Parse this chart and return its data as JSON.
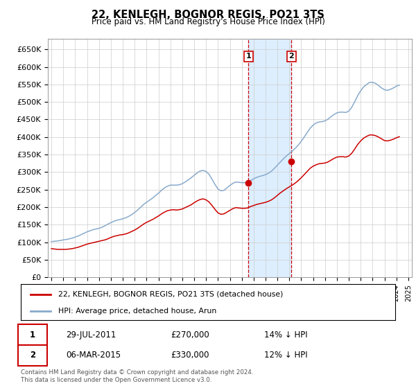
{
  "title": "22, KENLEGH, BOGNOR REGIS, PO21 3TS",
  "subtitle": "Price paid vs. HM Land Registry's House Price Index (HPI)",
  "legend_line1": "22, KENLEGH, BOGNOR REGIS, PO21 3TS (detached house)",
  "legend_line2": "HPI: Average price, detached house, Arun",
  "annotation1_date": "29-JUL-2011",
  "annotation1_price": "£270,000",
  "annotation1_hpi": "14% ↓ HPI",
  "annotation2_date": "06-MAR-2015",
  "annotation2_price": "£330,000",
  "annotation2_hpi": "12% ↓ HPI",
  "footer": "Contains HM Land Registry data © Crown copyright and database right 2024.\nThis data is licensed under the Open Government Licence v3.0.",
  "red_color": "#cc0000",
  "blue_color": "#88aacc",
  "highlight_color": "#ddeeff",
  "annotation_color": "#cc0000",
  "ylim": [
    0,
    680000
  ],
  "yticks": [
    0,
    50000,
    100000,
    150000,
    200000,
    250000,
    300000,
    350000,
    400000,
    450000,
    500000,
    550000,
    600000,
    650000
  ],
  "sale1_year": 2011.57,
  "sale2_year": 2015.17,
  "sale1_value": 270000,
  "sale2_value": 330000,
  "hpi_years": [
    1995,
    1995.25,
    1995.5,
    1995.75,
    1996,
    1996.25,
    1996.5,
    1996.75,
    1997,
    1997.25,
    1997.5,
    1997.75,
    1998,
    1998.25,
    1998.5,
    1998.75,
    1999,
    1999.25,
    1999.5,
    1999.75,
    2000,
    2000.25,
    2000.5,
    2000.75,
    2001,
    2001.25,
    2001.5,
    2001.75,
    2002,
    2002.25,
    2002.5,
    2002.75,
    2003,
    2003.25,
    2003.5,
    2003.75,
    2004,
    2004.25,
    2004.5,
    2004.75,
    2005,
    2005.25,
    2005.5,
    2005.75,
    2006,
    2006.25,
    2006.5,
    2006.75,
    2007,
    2007.25,
    2007.5,
    2007.75,
    2008,
    2008.25,
    2008.5,
    2008.75,
    2009,
    2009.25,
    2009.5,
    2009.75,
    2010,
    2010.25,
    2010.5,
    2010.75,
    2011,
    2011.25,
    2011.5,
    2011.75,
    2012,
    2012.25,
    2012.5,
    2012.75,
    2013,
    2013.25,
    2013.5,
    2013.75,
    2014,
    2014.25,
    2014.5,
    2014.75,
    2015,
    2015.25,
    2015.5,
    2015.75,
    2016,
    2016.25,
    2016.5,
    2016.75,
    2017,
    2017.25,
    2017.5,
    2017.75,
    2018,
    2018.25,
    2018.5,
    2018.75,
    2019,
    2019.25,
    2019.5,
    2019.75,
    2020,
    2020.25,
    2020.5,
    2020.75,
    2021,
    2021.25,
    2021.5,
    2021.75,
    2022,
    2022.25,
    2022.5,
    2022.75,
    2023,
    2023.25,
    2023.5,
    2023.75,
    2024,
    2024.25
  ],
  "hpi_values": [
    102000,
    103000,
    104000,
    105000,
    107000,
    108000,
    110000,
    112000,
    115000,
    118000,
    122000,
    126000,
    130000,
    133000,
    136000,
    138000,
    140000,
    143000,
    147000,
    152000,
    156000,
    160000,
    163000,
    165000,
    167000,
    170000,
    174000,
    179000,
    185000,
    192000,
    200000,
    208000,
    214000,
    220000,
    226000,
    233000,
    240000,
    248000,
    255000,
    260000,
    263000,
    263000,
    263000,
    264000,
    267000,
    272000,
    278000,
    284000,
    291000,
    298000,
    303000,
    305000,
    302000,
    294000,
    280000,
    265000,
    252000,
    247000,
    248000,
    255000,
    262000,
    268000,
    272000,
    271000,
    270000,
    270000,
    272000,
    276000,
    281000,
    285000,
    288000,
    290000,
    293000,
    297000,
    303000,
    311000,
    320000,
    329000,
    338000,
    346000,
    353000,
    360000,
    368000,
    377000,
    388000,
    400000,
    413000,
    425000,
    434000,
    440000,
    443000,
    444000,
    446000,
    451000,
    458000,
    464000,
    469000,
    471000,
    471000,
    470000,
    474000,
    485000,
    501000,
    518000,
    532000,
    543000,
    550000,
    556000,
    556000,
    553000,
    547000,
    540000,
    535000,
    533000,
    536000,
    540000,
    545000,
    548000
  ],
  "red_years": [
    1995,
    1995.25,
    1995.5,
    1995.75,
    1996,
    1996.25,
    1996.5,
    1996.75,
    1997,
    1997.25,
    1997.5,
    1997.75,
    1998,
    1998.25,
    1998.5,
    1998.75,
    1999,
    1999.25,
    1999.5,
    1999.75,
    2000,
    2000.25,
    2000.5,
    2000.75,
    2001,
    2001.25,
    2001.5,
    2001.75,
    2002,
    2002.25,
    2002.5,
    2002.75,
    2003,
    2003.25,
    2003.5,
    2003.75,
    2004,
    2004.25,
    2004.5,
    2004.75,
    2005,
    2005.25,
    2005.5,
    2005.75,
    2006,
    2006.25,
    2006.5,
    2006.75,
    2007,
    2007.25,
    2007.5,
    2007.75,
    2008,
    2008.25,
    2008.5,
    2008.75,
    2009,
    2009.25,
    2009.5,
    2009.75,
    2010,
    2010.25,
    2010.5,
    2010.75,
    2011,
    2011.25,
    2011.5,
    2011.75,
    2012,
    2012.25,
    2012.5,
    2012.75,
    2013,
    2013.25,
    2013.5,
    2013.75,
    2014,
    2014.25,
    2014.5,
    2014.75,
    2015,
    2015.25,
    2015.5,
    2015.75,
    2016,
    2016.25,
    2016.5,
    2016.75,
    2017,
    2017.25,
    2017.5,
    2017.75,
    2018,
    2018.25,
    2018.5,
    2018.75,
    2019,
    2019.25,
    2019.5,
    2019.75,
    2020,
    2020.25,
    2020.5,
    2020.75,
    2021,
    2021.25,
    2021.5,
    2021.75,
    2022,
    2022.25,
    2022.5,
    2022.75,
    2023,
    2023.25,
    2023.5,
    2023.75,
    2024,
    2024.25
  ],
  "red_values": [
    82000,
    81000,
    80000,
    80000,
    80000,
    80000,
    81000,
    82000,
    84000,
    86000,
    89000,
    92000,
    95000,
    97000,
    99000,
    101000,
    103000,
    105000,
    107000,
    110000,
    114000,
    117000,
    119000,
    121000,
    122000,
    124000,
    127000,
    131000,
    135000,
    140000,
    146000,
    152000,
    157000,
    161000,
    165000,
    170000,
    175000,
    181000,
    186000,
    190000,
    192000,
    193000,
    192000,
    193000,
    195000,
    199000,
    203000,
    207000,
    213000,
    218000,
    222000,
    224000,
    221000,
    215000,
    205000,
    194000,
    184000,
    180000,
    181000,
    186000,
    191000,
    196000,
    199000,
    198000,
    197000,
    197000,
    198000,
    202000,
    205000,
    208000,
    210000,
    212000,
    214000,
    217000,
    221000,
    227000,
    234000,
    241000,
    247000,
    253000,
    258000,
    263000,
    269000,
    276000,
    284000,
    293000,
    302000,
    311000,
    317000,
    321000,
    324000,
    325000,
    326000,
    329000,
    334000,
    339000,
    343000,
    344000,
    344000,
    343000,
    346000,
    354000,
    366000,
    379000,
    389000,
    397000,
    402000,
    406000,
    406000,
    404000,
    400000,
    395000,
    390000,
    389000,
    391000,
    394000,
    398000,
    401000
  ]
}
